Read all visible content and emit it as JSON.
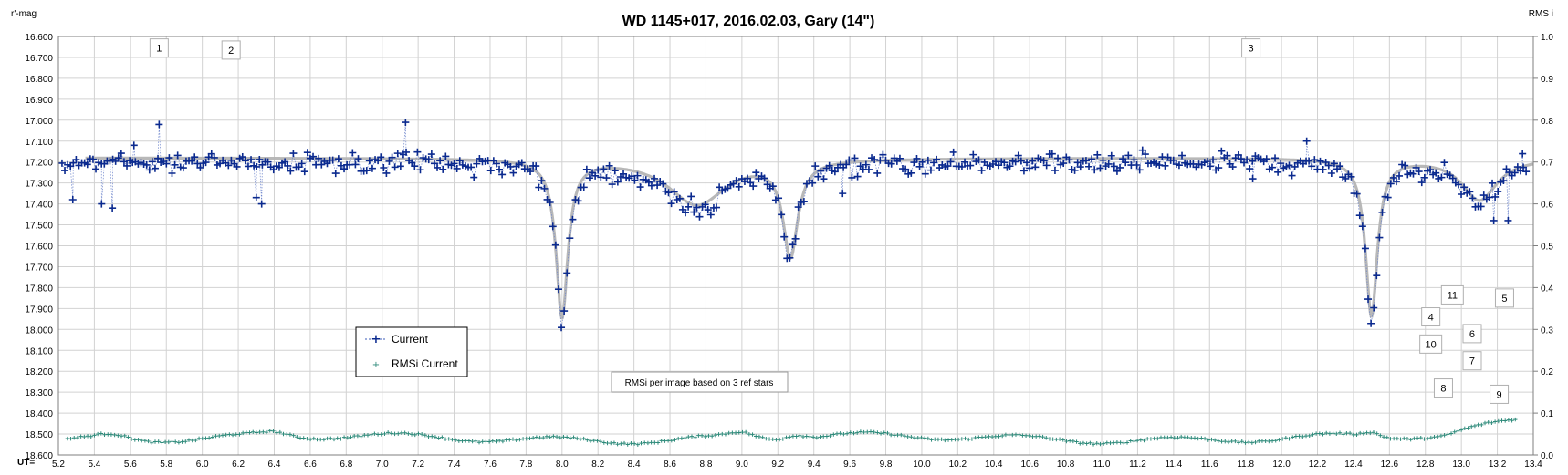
{
  "chart_data": {
    "type": "scatter",
    "title": "WD 1145+017, 2016.02.03,  Gary (14\")",
    "ylabel_left": "r'-mag",
    "ylabel_right": "RMS i",
    "xlabel": "UT=",
    "xlim": [
      5.2,
      13.4
    ],
    "ylim_left": [
      16.6,
      18.6
    ],
    "ylim_right": [
      0.0,
      1.0
    ],
    "y_left_inverted": true,
    "x_ticks": [
      "5.2",
      "5.4",
      "5.6",
      "5.8",
      "6.0",
      "6.2",
      "6.4",
      "6.6",
      "6.8",
      "7.0",
      "7.2",
      "7.4",
      "7.6",
      "7.8",
      "8.0",
      "8.2",
      "8.4",
      "8.6",
      "8.8",
      "9.0",
      "9.2",
      "9.4",
      "9.6",
      "9.8",
      "10.0",
      "10.2",
      "10.4",
      "10.6",
      "10.8",
      "11.0",
      "11.2",
      "11.4",
      "11.6",
      "11.8",
      "12.0",
      "12.2",
      "12.4",
      "12.6",
      "12.8",
      "13.0",
      "13.2",
      "13.4"
    ],
    "y_left_ticks": [
      "16.600",
      "16.700",
      "16.800",
      "16.900",
      "17.000",
      "17.100",
      "17.200",
      "17.300",
      "17.400",
      "17.500",
      "17.600",
      "17.700",
      "17.800",
      "17.900",
      "18.000",
      "18.100",
      "18.200",
      "18.300",
      "18.400",
      "18.500",
      "18.600"
    ],
    "y_right_ticks": [
      "1.0",
      "0.9",
      "0.8",
      "0.7",
      "0.6",
      "0.5",
      "0.4",
      "0.3",
      "0.2",
      "0.1",
      "0.0"
    ],
    "grid": true,
    "legend_position": "lower-left",
    "series": [
      {
        "name": "Current",
        "axis": "left",
        "color": "#0b2a8f",
        "marker": "plus",
        "connect": "dotted",
        "baseline": 17.2,
        "scatter": 0.05,
        "n_points": 520
      },
      {
        "name": "RMSi Current",
        "axis": "right",
        "color": "#2d8a7a",
        "marker": "small-plus",
        "baseline": 0.04
      }
    ],
    "model_curve": {
      "color": "#b4b4b4",
      "baseline": 17.18
    },
    "dips": [
      {
        "ut_center": 8.0,
        "depth_mag": 0.75,
        "width_ut": 0.04
      },
      {
        "ut_center": 8.75,
        "depth_mag": 0.22,
        "width_ut": 0.2
      },
      {
        "ut_center": 9.27,
        "depth_mag": 0.45,
        "width_ut": 0.05
      },
      {
        "ut_center": 12.5,
        "depth_mag": 0.75,
        "width_ut": 0.04
      },
      {
        "ut_center": 13.1,
        "depth_mag": 0.2,
        "width_ut": 0.12
      }
    ],
    "outliers": [
      {
        "ut": 5.28,
        "mag": 17.38
      },
      {
        "ut": 5.44,
        "mag": 17.4
      },
      {
        "ut": 5.5,
        "mag": 17.42
      },
      {
        "ut": 5.62,
        "mag": 17.12
      },
      {
        "ut": 5.76,
        "mag": 17.02
      },
      {
        "ut": 6.3,
        "mag": 17.37
      },
      {
        "ut": 6.33,
        "mag": 17.4
      },
      {
        "ut": 7.13,
        "mag": 17.01
      },
      {
        "ut": 9.56,
        "mag": 17.35
      },
      {
        "ut": 11.84,
        "mag": 17.28
      },
      {
        "ut": 12.14,
        "mag": 17.1
      },
      {
        "ut": 13.18,
        "mag": 17.48
      },
      {
        "ut": 13.26,
        "mag": 17.48
      },
      {
        "ut": 13.34,
        "mag": 17.16
      }
    ],
    "box_labels": [
      {
        "text": "1",
        "ut": 5.76,
        "mag": 16.655
      },
      {
        "text": "2",
        "ut": 6.16,
        "mag": 16.665
      },
      {
        "text": "3",
        "ut": 11.83,
        "mag": 16.655
      },
      {
        "text": "11",
        "ut": 12.95,
        "mag": 17.835
      },
      {
        "text": "5",
        "ut": 13.24,
        "mag": 17.85
      },
      {
        "text": "4",
        "ut": 12.83,
        "mag": 17.94
      },
      {
        "text": "6",
        "ut": 13.06,
        "mag": 18.02
      },
      {
        "text": "10",
        "ut": 12.83,
        "mag": 18.07
      },
      {
        "text": "7",
        "ut": 13.06,
        "mag": 18.15
      },
      {
        "text": "8",
        "ut": 12.9,
        "mag": 18.28
      },
      {
        "text": "9",
        "ut": 13.21,
        "mag": 18.31
      }
    ],
    "annotation": "RMSi per image based on 3 ref stars"
  }
}
